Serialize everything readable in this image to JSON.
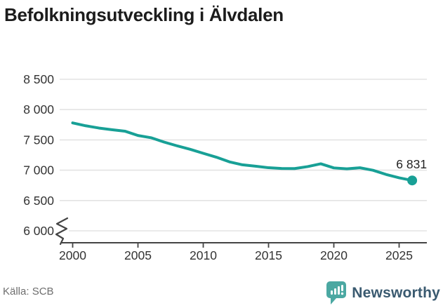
{
  "title": "Befolkningsutveckling i Älvdalen",
  "footer": {
    "source": "Källa: SCB",
    "brand": "Newsworthy"
  },
  "chart_data": {
    "type": "line",
    "title": "Befolkningsutveckling i Älvdalen",
    "x": [
      2000,
      2001,
      2002,
      2003,
      2004,
      2005,
      2006,
      2007,
      2008,
      2009,
      2010,
      2011,
      2012,
      2013,
      2014,
      2015,
      2016,
      2017,
      2018,
      2019,
      2020,
      2021,
      2022,
      2023,
      2024,
      2025,
      2026
    ],
    "series": [
      {
        "name": "Befolkning",
        "values": [
          7780,
          7733,
          7696,
          7668,
          7644,
          7573,
          7536,
          7464,
          7402,
          7345,
          7279,
          7215,
          7138,
          7089,
          7066,
          7041,
          7029,
          7027,
          7060,
          7106,
          7038,
          7023,
          7040,
          6999,
          6930,
          6875,
          6831
        ]
      }
    ],
    "end_label": "6 831",
    "y_axis": {
      "min": 6000,
      "max": 8500,
      "axis_break": true,
      "ticks": [
        {
          "value": 8500,
          "label": "8 500"
        },
        {
          "value": 8000,
          "label": "8 000"
        },
        {
          "value": 7500,
          "label": "7 500"
        },
        {
          "value": 7000,
          "label": "7 000"
        },
        {
          "value": 6500,
          "label": "6 500"
        },
        {
          "value": 6000,
          "label": "6 000"
        }
      ]
    },
    "x_axis": {
      "ticks": [
        {
          "value": 2000,
          "label": "2000"
        },
        {
          "value": 2005,
          "label": "2005"
        },
        {
          "value": 2010,
          "label": "2010"
        },
        {
          "value": 2015,
          "label": "2015"
        },
        {
          "value": 2020,
          "label": "2020"
        },
        {
          "value": 2025,
          "label": "2025"
        }
      ]
    },
    "grid": true,
    "legend": "none",
    "colors": {
      "line": "#18a096",
      "grid": "#e3e3e3",
      "axis": "#444444",
      "tick_text": "#333333",
      "end_label_text": "#222222"
    }
  },
  "logo": {
    "brand_color": "#4ba8a2",
    "text_color": "#3a5a70"
  }
}
